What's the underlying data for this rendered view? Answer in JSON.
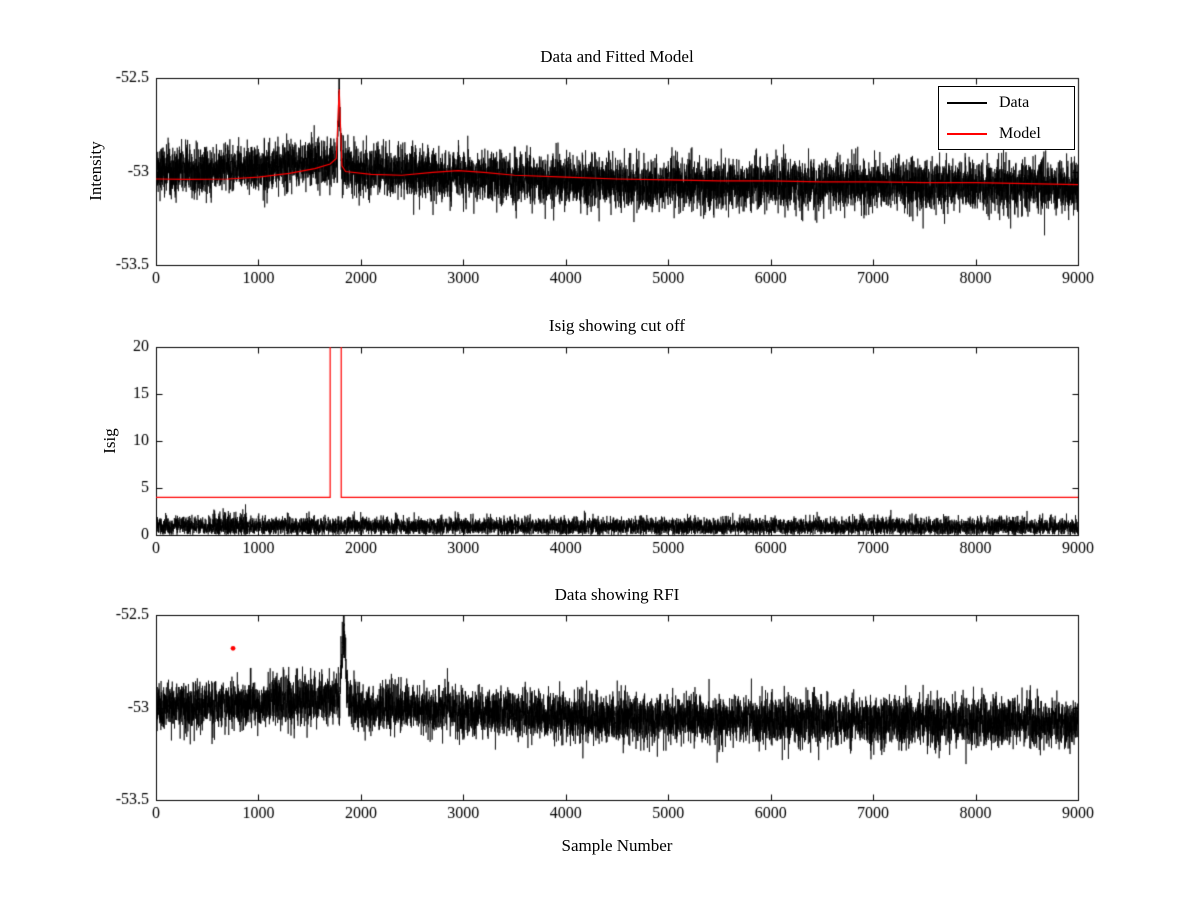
{
  "figure": {
    "background": "#ffffff",
    "text_color": "#000000"
  },
  "chart_data": [
    {
      "id": "top",
      "type": "line",
      "title": "Data and Fitted Model",
      "ylabel": "Intensity",
      "xlabel": "",
      "xlim": [
        0,
        9000
      ],
      "ylim": [
        -53.5,
        -52.5
      ],
      "xticks": [
        0,
        1000,
        2000,
        3000,
        4000,
        5000,
        6000,
        7000,
        8000,
        9000
      ],
      "xtick_labels": [
        "0",
        "1000",
        "2000",
        "3000",
        "4000",
        "5000",
        "6000",
        "7000",
        "8000",
        "9000"
      ],
      "yticks": [
        -52.5,
        -53,
        -53.5
      ],
      "ytick_labels": [
        "-52.5",
        "-53",
        "-53.5"
      ],
      "grid": false,
      "legend": {
        "position": "northeast",
        "entries": [
          {
            "label": "Data",
            "color": "#000000"
          },
          {
            "label": "Model",
            "color": "#ff0000"
          }
        ]
      },
      "series": [
        {
          "name": "Data",
          "color": "#000000",
          "kind": "noise",
          "n_points": 8900,
          "seed": 12345,
          "noise_sigma": 0.065,
          "tail_prob": 0.003,
          "tail_mult": 1.6,
          "trend": [
            [
              0,
              -53.0
            ],
            [
              600,
              -52.99
            ],
            [
              1200,
              -52.975
            ],
            [
              1600,
              -52.955
            ],
            [
              1800,
              -52.95
            ],
            [
              1900,
              -52.99
            ],
            [
              2400,
              -53.005
            ],
            [
              3000,
              -53.02
            ],
            [
              3600,
              -53.04
            ],
            [
              4200,
              -53.055
            ],
            [
              5000,
              -53.065
            ],
            [
              6000,
              -53.07
            ],
            [
              7000,
              -53.07
            ],
            [
              8000,
              -53.075
            ],
            [
              9000,
              -53.08
            ]
          ],
          "spike": {
            "x": 1788,
            "peak": -52.56,
            "width": 20
          }
        },
        {
          "name": "Model",
          "color": "#ff0000",
          "kind": "keypoints",
          "line_width": 1.2,
          "points": [
            [
              0,
              -53.04
            ],
            [
              300,
              -53.042
            ],
            [
              700,
              -53.04
            ],
            [
              1000,
              -53.03
            ],
            [
              1300,
              -53.01
            ],
            [
              1550,
              -52.985
            ],
            [
              1700,
              -52.96
            ],
            [
              1760,
              -52.93
            ],
            [
              1788,
              -52.56
            ],
            [
              1815,
              -52.97
            ],
            [
              1850,
              -53.0
            ],
            [
              2100,
              -53.015
            ],
            [
              2400,
              -53.02
            ],
            [
              2700,
              -53.005
            ],
            [
              2950,
              -52.995
            ],
            [
              3200,
              -53.005
            ],
            [
              3500,
              -53.02
            ],
            [
              4000,
              -53.03
            ],
            [
              4500,
              -53.04
            ],
            [
              5000,
              -53.045
            ],
            [
              5500,
              -53.05
            ],
            [
              6000,
              -53.05
            ],
            [
              6500,
              -53.055
            ],
            [
              7000,
              -53.055
            ],
            [
              7500,
              -53.06
            ],
            [
              8000,
              -53.06
            ],
            [
              8500,
              -53.065
            ],
            [
              9000,
              -53.07
            ]
          ]
        }
      ]
    },
    {
      "id": "middle",
      "type": "line",
      "title": "Isig showing cut off",
      "ylabel": "Isig",
      "xlabel": "",
      "xlim": [
        0,
        9000
      ],
      "ylim": [
        0,
        20
      ],
      "xticks": [
        0,
        1000,
        2000,
        3000,
        4000,
        5000,
        6000,
        7000,
        8000,
        9000
      ],
      "xtick_labels": [
        "0",
        "1000",
        "2000",
        "3000",
        "4000",
        "5000",
        "6000",
        "7000",
        "8000",
        "9000"
      ],
      "yticks": [
        0,
        5,
        10,
        15,
        20
      ],
      "ytick_labels": [
        "0",
        "5",
        "10",
        "15",
        "20"
      ],
      "grid": false,
      "series": [
        {
          "name": "Isig",
          "color": "#000000",
          "kind": "noise",
          "n_points": 8900,
          "seed": 777,
          "noise_sigma": 0.48,
          "abs": true,
          "clip_min": 0.02,
          "tail_prob": 0.004,
          "tail_mult": 1.8,
          "bump": {
            "center": 720,
            "halfwidth": 160,
            "scale": 1.6
          },
          "trend": [
            [
              0,
              0.95
            ],
            [
              9000,
              0.85
            ]
          ]
        },
        {
          "name": "cut off threshold",
          "color": "#ff0000",
          "kind": "keypoints",
          "line_width": 1.2,
          "points": [
            [
              0,
              4
            ],
            [
              1700,
              4
            ],
            [
              1700,
              25
            ],
            [
              1808,
              25
            ],
            [
              1808,
              4
            ],
            [
              9000,
              4
            ]
          ]
        }
      ]
    },
    {
      "id": "bottom",
      "type": "line",
      "title": "Data showing RFI",
      "ylabel": "",
      "xlabel": "Sample Number",
      "xlim": [
        0,
        9000
      ],
      "ylim": [
        -53.5,
        -52.5
      ],
      "xticks": [
        0,
        1000,
        2000,
        3000,
        4000,
        5000,
        6000,
        7000,
        8000,
        9000
      ],
      "xtick_labels": [
        "0",
        "1000",
        "2000",
        "3000",
        "4000",
        "5000",
        "6000",
        "7000",
        "8000",
        "9000"
      ],
      "yticks": [
        -52.5,
        -53,
        -53.5
      ],
      "ytick_labels": [
        "-52.5",
        "-53",
        "-53.5"
      ],
      "grid": false,
      "series": [
        {
          "name": "Data",
          "color": "#000000",
          "kind": "noise",
          "n_points": 8900,
          "seed": 424242,
          "noise_sigma": 0.065,
          "tail_prob": 0.003,
          "tail_mult": 1.6,
          "trend": [
            [
              0,
              -53.0
            ],
            [
              600,
              -52.99
            ],
            [
              1200,
              -52.975
            ],
            [
              1600,
              -52.955
            ],
            [
              1850,
              -52.94
            ],
            [
              1950,
              -52.99
            ],
            [
              2400,
              -53.005
            ],
            [
              3000,
              -53.02
            ],
            [
              3600,
              -53.04
            ],
            [
              4200,
              -53.055
            ],
            [
              5000,
              -53.065
            ],
            [
              6000,
              -53.07
            ],
            [
              7000,
              -53.07
            ],
            [
              8000,
              -53.075
            ],
            [
              9000,
              -53.08
            ]
          ],
          "spike": {
            "x": 1830,
            "peak": -52.55,
            "width": 40
          }
        },
        {
          "name": "RFI flagged point",
          "color": "#ff0000",
          "kind": "marker",
          "marker": "dot",
          "points": [
            [
              752,
              -52.68
            ]
          ]
        }
      ]
    }
  ]
}
